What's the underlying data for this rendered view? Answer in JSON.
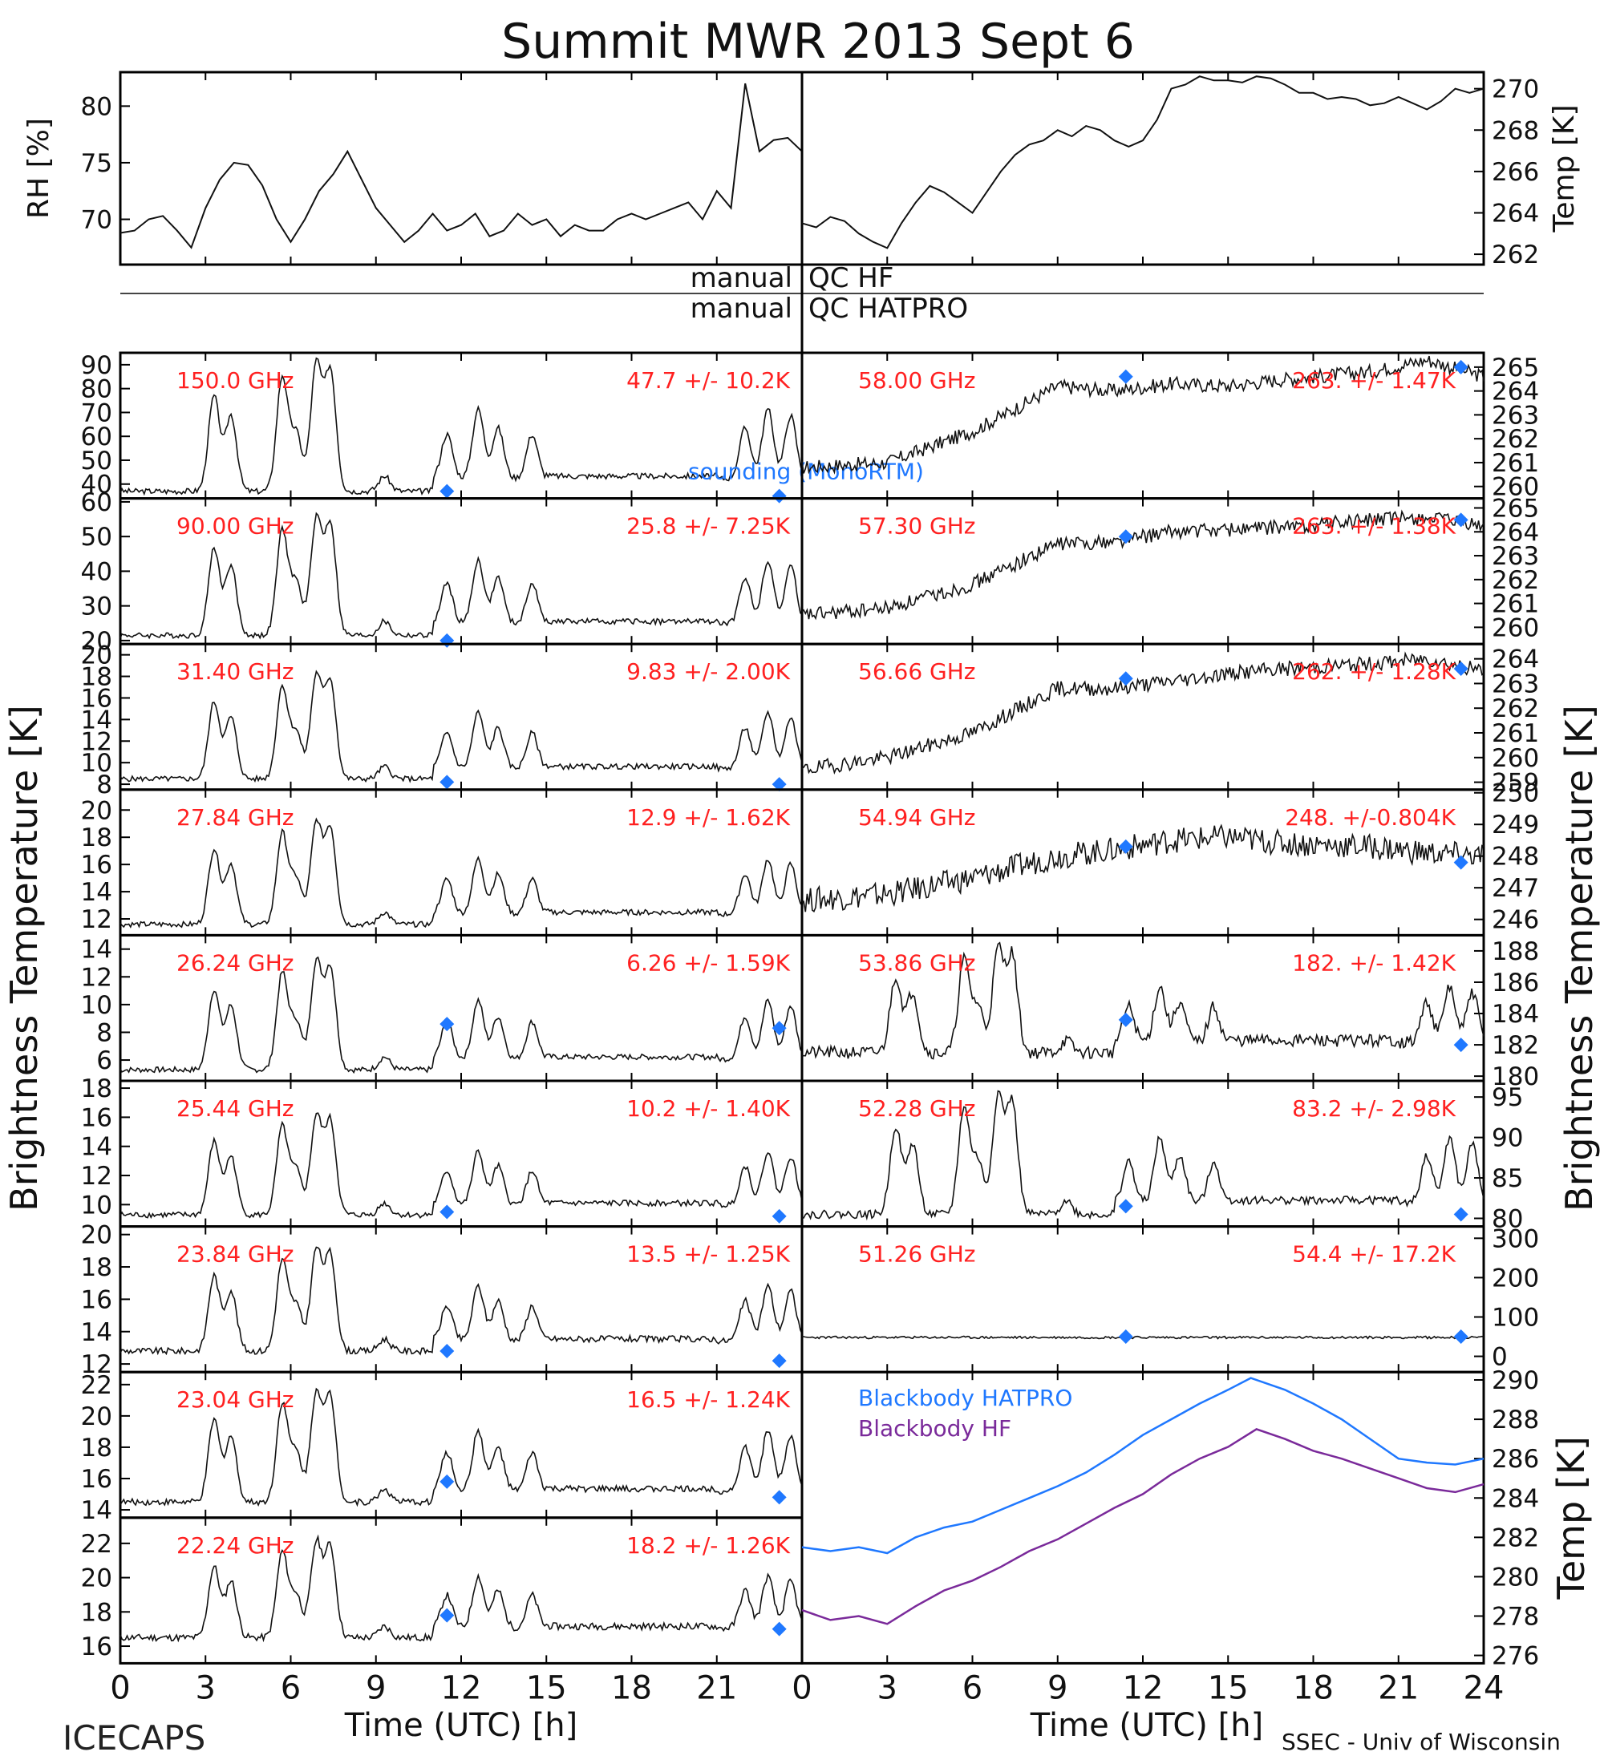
{
  "title": "Summit MWR 2013 Sept  6",
  "footer_left": "ICECAPS",
  "footer_right": "SSEC - Univ of Wisconsin",
  "x_axis": {
    "label": "Time (UTC) [h]",
    "ticks_left": [
      "0",
      "3",
      "6",
      "9",
      "12",
      "15",
      "18",
      "21"
    ],
    "ticks_right": [
      "0",
      "3",
      "6",
      "9",
      "12",
      "15",
      "18",
      "21",
      "24"
    ]
  },
  "left_ylabel": "Brightness Temperature [K]",
  "right_ylabel": "Brightness Temperature [K]",
  "qc_rows": [
    {
      "left": "manual",
      "right": "QC HF"
    },
    {
      "left": "manual",
      "right": "QC HATPRO"
    }
  ],
  "colors": {
    "trace": "#111111",
    "sounding": "#1f78ff",
    "stats": "#ff2020",
    "hatpro": "#1f78ff",
    "hf": "#7a2a9a"
  },
  "chart_data": [
    {
      "type": "line",
      "id": "rh",
      "ylabel": "RH [%]",
      "ylim": [
        66,
        83
      ],
      "yticks": [
        70,
        75,
        80
      ],
      "xlim": [
        0,
        24
      ],
      "x": [
        0,
        0.5,
        1,
        1.5,
        2,
        2.5,
        3,
        3.5,
        4,
        4.5,
        5,
        5.5,
        6,
        6.5,
        7,
        7.5,
        8,
        8.5,
        9,
        9.5,
        10,
        10.5,
        11,
        11.5,
        12,
        12.5,
        13,
        13.5,
        14,
        14.5,
        15,
        15.5,
        16,
        16.5,
        17,
        17.5,
        18,
        18.5,
        19,
        19.5,
        20,
        20.5,
        21,
        21.5,
        22,
        22.5,
        23,
        23.5,
        24
      ],
      "values": [
        68.8,
        69,
        70,
        70.3,
        69,
        67.5,
        71,
        73.5,
        75,
        74.8,
        73,
        70,
        68,
        70,
        72.5,
        74,
        76,
        73.5,
        71,
        69.5,
        68,
        69,
        70.5,
        69,
        69.5,
        70.5,
        68.5,
        69,
        70.5,
        69.5,
        70,
        68.5,
        69.5,
        69,
        69,
        70,
        70.5,
        70,
        70.5,
        71,
        71.5,
        70,
        72.5,
        71,
        82,
        76,
        77,
        77.2,
        76
      ]
    },
    {
      "type": "line",
      "id": "temp",
      "ylabel": "Temp [K]",
      "ylim": [
        261.5,
        270.8
      ],
      "yticks": [
        262,
        264,
        266,
        268,
        270
      ],
      "xlim": [
        0,
        24
      ],
      "x": [
        0,
        0.5,
        1,
        1.5,
        2,
        2.5,
        3,
        3.5,
        4,
        4.5,
        5,
        5.5,
        6,
        6.5,
        7,
        7.5,
        8,
        8.5,
        9,
        9.5,
        10,
        10.5,
        11,
        11.5,
        12,
        12.5,
        13,
        13.5,
        14,
        14.5,
        15,
        15.5,
        16,
        16.5,
        17,
        17.5,
        18,
        18.5,
        19,
        19.5,
        20,
        20.5,
        21,
        21.5,
        22,
        22.5,
        23,
        23.5,
        24
      ],
      "values": [
        263.5,
        263.3,
        263.8,
        263.6,
        263,
        262.6,
        262.3,
        263.5,
        264.5,
        265.3,
        265,
        264.5,
        264,
        265,
        266,
        266.8,
        267.3,
        267.5,
        268,
        267.7,
        268.2,
        268,
        267.5,
        267.2,
        267.5,
        268.5,
        270,
        270.2,
        270.6,
        270.4,
        270.4,
        270.3,
        270.6,
        270.5,
        270.2,
        269.8,
        269.8,
        269.5,
        269.6,
        269.5,
        269.2,
        269.3,
        269.6,
        269.3,
        269,
        269.4,
        270,
        269.8,
        270
      ]
    }
  ],
  "left_channels": [
    {
      "freq": "150.0 GHz",
      "stats": "47.7 +/-  10.2K",
      "ylim": [
        34,
        95
      ],
      "yticks": [
        40,
        50,
        60,
        70,
        80,
        90
      ],
      "base": 37,
      "peak": 90,
      "noise": 1.2,
      "sondes": [
        [
          11.5,
          37
        ],
        [
          23.2,
          35
        ]
      ],
      "sounding_label": "sounding (MonoRTM)"
    },
    {
      "freq": "90.00 GHz",
      "stats": "25.8 +/-  7.25K",
      "ylim": [
        19,
        61
      ],
      "yticks": [
        20,
        30,
        40,
        50,
        60
      ],
      "base": 21.5,
      "peak": 55,
      "noise": 0.8,
      "sondes": [
        [
          11.5,
          20
        ]
      ]
    },
    {
      "freq": "31.40 GHz",
      "stats": "9.83 +/- 2.00K",
      "ylim": [
        7.5,
        21
      ],
      "yticks": [
        8,
        10,
        12,
        14,
        16,
        18,
        20
      ],
      "base": 8.5,
      "peak": 18,
      "noise": 0.25,
      "sondes": [
        [
          11.5,
          8.2
        ],
        [
          23.2,
          8
        ]
      ]
    },
    {
      "freq": "27.84 GHz",
      "stats": "12.9 +/- 1.62K",
      "ylim": [
        10.8,
        21.5
      ],
      "yticks": [
        12,
        14,
        16,
        18,
        20
      ],
      "base": 11.6,
      "peak": 19,
      "noise": 0.2,
      "sondes": []
    },
    {
      "freq": "26.24 GHz",
      "stats": "6.26 +/- 1.59K",
      "ylim": [
        4.5,
        15
      ],
      "yticks": [
        6,
        8,
        10,
        12,
        14
      ],
      "base": 5.3,
      "peak": 13,
      "noise": 0.2,
      "sondes": [
        [
          11.5,
          8.6
        ],
        [
          23.2,
          8.3
        ]
      ]
    },
    {
      "freq": "25.44 GHz",
      "stats": "10.2 +/- 1.40K",
      "ylim": [
        8.5,
        18.5
      ],
      "yticks": [
        10,
        12,
        14,
        16,
        18
      ],
      "base": 9.3,
      "peak": 16,
      "noise": 0.2,
      "sondes": [
        [
          11.5,
          9.5
        ],
        [
          23.2,
          9.2
        ]
      ]
    },
    {
      "freq": "23.84 GHz",
      "stats": "13.5 +/- 1.25K",
      "ylim": [
        11.5,
        20.5
      ],
      "yticks": [
        12,
        14,
        16,
        18,
        20
      ],
      "base": 12.8,
      "peak": 19,
      "noise": 0.2,
      "sondes": [
        [
          11.5,
          12.8
        ],
        [
          23.2,
          12.2
        ]
      ]
    },
    {
      "freq": "23.04 GHz",
      "stats": "16.5 +/- 1.24K",
      "ylim": [
        13.5,
        22.8
      ],
      "yticks": [
        14,
        16,
        18,
        20,
        22
      ],
      "base": 14.5,
      "peak": 21.5,
      "noise": 0.2,
      "sondes": [
        [
          11.5,
          15.8
        ],
        [
          23.2,
          14.8
        ]
      ]
    },
    {
      "freq": "22.24 GHz",
      "stats": "18.2 +/- 1.26K",
      "ylim": [
        15,
        23.5
      ],
      "yticks": [
        16,
        18,
        20,
        22
      ],
      "base": 16.5,
      "peak": 22,
      "noise": 0.2,
      "sondes": [
        [
          11.5,
          17.8
        ],
        [
          23.2,
          17
        ]
      ]
    }
  ],
  "right_channels": [
    {
      "freq": "58.00 GHz",
      "stats": "263. +/- 1.47K",
      "ylim": [
        259.5,
        265.6
      ],
      "yticks": [
        260,
        261,
        262,
        263,
        264,
        265
      ],
      "trend": [
        [
          0,
          260.8
        ],
        [
          3,
          261
        ],
        [
          6,
          262.3
        ],
        [
          9,
          264.2
        ],
        [
          11,
          264
        ],
        [
          13,
          264.3
        ],
        [
          15,
          264.2
        ],
        [
          17,
          264.5
        ],
        [
          20,
          264.8
        ],
        [
          22,
          265.3
        ],
        [
          24,
          264.6
        ]
      ],
      "noise": 0.3,
      "sondes": [
        [
          11.4,
          264.6
        ],
        [
          23.2,
          265
        ]
      ]
    },
    {
      "freq": "57.30 GHz",
      "stats": "263. +/- 1.38K",
      "ylim": [
        259.3,
        265.4
      ],
      "yticks": [
        260,
        261,
        262,
        263,
        264,
        265
      ],
      "trend": [
        [
          0,
          260.5
        ],
        [
          3,
          260.8
        ],
        [
          6,
          261.8
        ],
        [
          9,
          263.5
        ],
        [
          11,
          263.6
        ],
        [
          13,
          264
        ],
        [
          15,
          264.1
        ],
        [
          17,
          264.2
        ],
        [
          20,
          264.5
        ],
        [
          22,
          264.6
        ],
        [
          24,
          264.2
        ]
      ],
      "noise": 0.3,
      "sondes": [
        [
          11.4,
          263.8
        ],
        [
          23.2,
          264.5
        ]
      ]
    },
    {
      "freq": "56.66 GHz",
      "stats": "262. +/- 1.28K",
      "ylim": [
        258.7,
        264.6
      ],
      "yticks": [
        259,
        260,
        261,
        262,
        263,
        264
      ],
      "trend": [
        [
          0,
          259.5
        ],
        [
          3,
          260
        ],
        [
          6,
          261
        ],
        [
          9,
          262.8
        ],
        [
          11,
          262.8
        ],
        [
          13,
          263.1
        ],
        [
          15,
          263.4
        ],
        [
          17,
          263.6
        ],
        [
          20,
          263.8
        ],
        [
          22,
          264
        ],
        [
          24,
          263.5
        ]
      ],
      "noise": 0.3,
      "sondes": [
        [
          11.4,
          263.2
        ],
        [
          23.2,
          263.6
        ]
      ]
    },
    {
      "freq": "54.94 GHz",
      "stats": "248. +/-0.804K",
      "ylim": [
        245.5,
        250.1
      ],
      "yticks": [
        246,
        247,
        248,
        249,
        250
      ],
      "trend": [
        [
          0,
          246.6
        ],
        [
          3,
          246.8
        ],
        [
          6,
          247.3
        ],
        [
          9,
          248
        ],
        [
          11,
          248.2
        ],
        [
          13,
          248.5
        ],
        [
          15,
          248.6
        ],
        [
          17,
          248.4
        ],
        [
          20,
          248.3
        ],
        [
          22,
          248.1
        ],
        [
          24,
          248
        ]
      ],
      "noise": 0.4,
      "sondes": [
        [
          11.4,
          248.3
        ],
        [
          23.2,
          247.8
        ]
      ]
    },
    {
      "freq": "53.86 GHz",
      "stats": "182. +/- 1.42K",
      "ylim": [
        179.7,
        189
      ],
      "yticks": [
        180,
        182,
        184,
        186,
        188
      ],
      "base": 181.5,
      "peak": 188,
      "noise": 0.4,
      "sondes": [
        [
          11.4,
          183.6
        ],
        [
          23.2,
          182
        ]
      ]
    },
    {
      "freq": "52.28 GHz",
      "stats": "83.2 +/- 2.98K",
      "ylim": [
        79,
        97
      ],
      "yticks": [
        80,
        85,
        90,
        95
      ],
      "base": 80.5,
      "peak": 95,
      "noise": 0.5,
      "sondes": [
        [
          11.4,
          81.5
        ],
        [
          23.2,
          80.5
        ]
      ]
    },
    {
      "freq": "51.26 GHz",
      "stats": "54.4 +/- 17.2K",
      "ylim": [
        -40,
        330
      ],
      "yticks": [
        0,
        100,
        200,
        300
      ],
      "flat": 48,
      "noise": 3,
      "sondes": [
        [
          11.4,
          50
        ],
        [
          23.2,
          50
        ]
      ]
    }
  ],
  "blackbody": {
    "ylabel": "Temp [K]",
    "ylim": [
      275.6,
      290.4
    ],
    "yticks": [
      276,
      278,
      280,
      282,
      284,
      286,
      288,
      290
    ],
    "series": [
      {
        "name": "Blackbody HATPRO",
        "x": [
          0,
          1,
          2,
          3,
          4,
          5,
          6,
          7,
          8,
          9,
          10,
          11,
          12,
          13,
          14,
          15,
          15.8,
          17,
          18,
          19,
          20,
          21,
          22,
          23,
          24
        ],
        "values": [
          281.5,
          281.3,
          281.5,
          281.2,
          282,
          282.5,
          282.8,
          283.4,
          284,
          284.6,
          285.3,
          286.2,
          287.2,
          288,
          288.8,
          289.5,
          290.1,
          289.5,
          288.8,
          288,
          287,
          286,
          285.8,
          285.7,
          286
        ]
      },
      {
        "name": "Blackbody HF",
        "x": [
          0,
          1,
          2,
          3,
          4,
          5,
          6,
          7,
          8,
          9,
          10,
          11,
          12,
          13,
          14,
          15,
          16,
          17,
          18,
          19,
          20,
          21,
          22,
          23,
          24
        ],
        "values": [
          278.3,
          277.8,
          278,
          277.6,
          278.5,
          279.3,
          279.8,
          280.5,
          281.3,
          281.9,
          282.7,
          283.5,
          284.2,
          285.2,
          286,
          286.6,
          287.5,
          287,
          286.4,
          286,
          285.5,
          285,
          284.5,
          284.3,
          284.7
        ]
      }
    ]
  }
}
